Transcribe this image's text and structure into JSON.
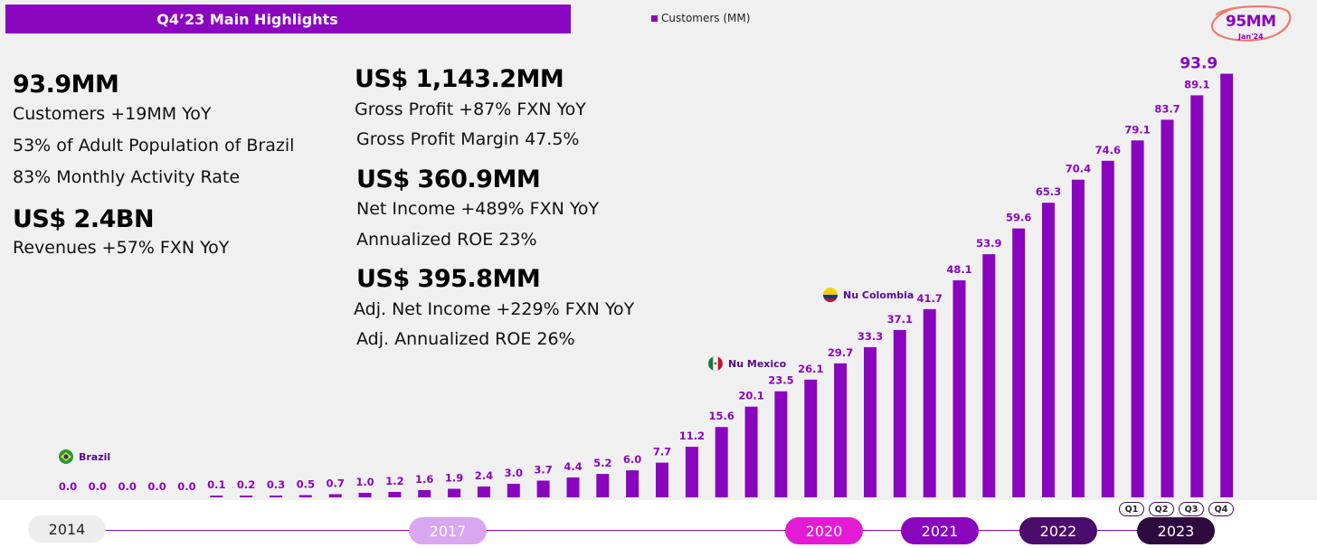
{
  "header": {
    "title": "Q4’23 Main Highlights"
  },
  "legend": {
    "label": "Customers (MM)"
  },
  "highlights_left": {
    "customers_value": "93.9MM",
    "customers_yoy": "Customers +19MM YoY",
    "adult_population": "53% of Adult Population of Brazil",
    "activity_rate": "83% Monthly Activity Rate",
    "revenue_value": "US$ 2.4BN",
    "revenue_growth": "Revenues +57%  FXN YoY"
  },
  "highlights_right": {
    "gross_profit_value": "US$ 1,143.2MM",
    "gross_profit_growth": "Gross Profit +87%  FXN YoY",
    "gross_profit_margin": "Gross Profit Margin 47.5%",
    "net_income_value": "US$ 360.9MM",
    "net_income_growth": "Net Income +489% FXN YoY",
    "roe": "Annualized ROE 23%",
    "adj_net_income_value": "US$ 395.8MM",
    "adj_net_income_growth": "Adj. Net Income +229% FXN YoY",
    "adj_roe": "Adj. Annualized ROE 26%"
  },
  "annotation": {
    "value": "95MM",
    "date": "Jan'24"
  },
  "markers": [
    {
      "label": "Brazil",
      "icon": "brazil-flag-icon",
      "at_index": 0
    },
    {
      "label": "Nu Mexico",
      "icon": "mexico-flag-icon",
      "at_index": 22
    },
    {
      "label": "Nu Colombia",
      "icon": "colombia-flag-icon",
      "at_index": 27
    }
  ],
  "timeline": {
    "years": [
      {
        "label": "2014",
        "bg": "#ededed",
        "fg": "#222222"
      },
      {
        "label": "2017",
        "bg": "#d9a6f0",
        "fg": "#ffffff"
      },
      {
        "label": "2020",
        "bg": "#e31bd5",
        "fg": "#ffffff"
      },
      {
        "label": "2021",
        "bg": "#8a05be",
        "fg": "#ffffff"
      },
      {
        "label": "2022",
        "bg": "#4a0d6b",
        "fg": "#ffffff"
      },
      {
        "label": "2023",
        "bg": "#2e0b3f",
        "fg": "#ffffff"
      }
    ],
    "quarters": [
      "Q1",
      "Q2",
      "Q3",
      "Q4"
    ]
  },
  "colors": {
    "accent": "#8a05be",
    "annotation_circle": "#f07a6a",
    "panel": "#f0f0f0"
  },
  "chart_data": {
    "type": "bar",
    "title": "",
    "xlabel": "",
    "ylabel": "",
    "legend": [
      "Customers (MM)"
    ],
    "legend_position": "top",
    "grid": false,
    "series": [
      {
        "name": "Customers (MM)",
        "values": [
          0.0,
          0.0,
          0.0,
          0.0,
          0.0,
          0.1,
          0.2,
          0.3,
          0.5,
          0.7,
          1.0,
          1.2,
          1.6,
          1.9,
          2.4,
          3.0,
          3.7,
          4.4,
          5.2,
          6.0,
          7.7,
          11.2,
          15.6,
          20.1,
          23.5,
          26.1,
          29.7,
          33.3,
          37.1,
          41.7,
          48.1,
          53.9,
          59.6,
          65.3,
          70.4,
          74.6,
          79.1,
          83.7,
          89.1,
          93.9
        ]
      }
    ],
    "value_labels": [
      "0.0",
      "0.0",
      "0.0",
      "0.0",
      "0.0",
      "0.1",
      "0.2",
      "0.3",
      "0.5",
      "0.7",
      "1.0",
      "1.2",
      "1.6",
      "1.9",
      "2.4",
      "3.0",
      "3.7",
      "4.4",
      "5.2",
      "6.0",
      "7.7",
      "11.2",
      "15.6",
      "20.1",
      "23.5",
      "26.1",
      "29.7",
      "33.3",
      "37.1",
      "41.7",
      "48.1",
      "53.9",
      "59.6",
      "65.3",
      "70.4",
      "74.6",
      "79.1",
      "83.7",
      "89.1",
      "93.9"
    ],
    "ylim": [
      0,
      95
    ]
  }
}
